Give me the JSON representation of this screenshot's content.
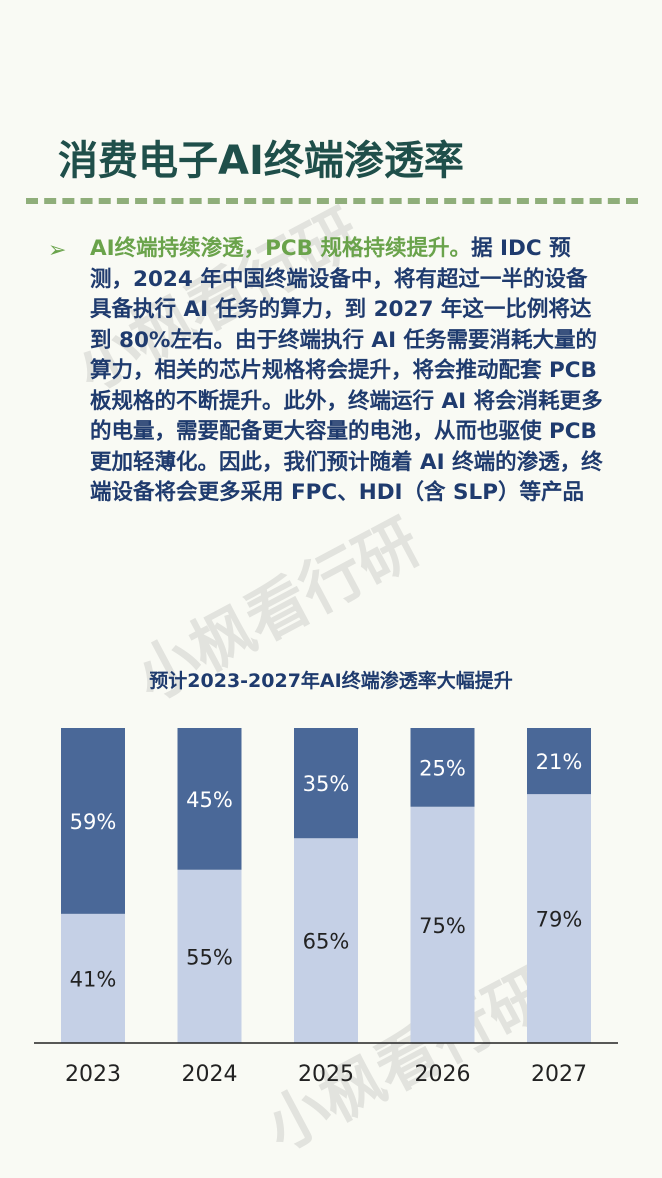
{
  "page": {
    "title": "消费电子AI终端渗透率",
    "bullet_highlight": "AI终端持续渗透，PCB 规格持续提升。",
    "bullet_text": "据 IDC 预测，2024 年中国终端设备中，将有超过一半的设备具备执行 AI 任务的算力，到 2027 年这一比例将达到 80%左右。由于终端执行 AI 任务需要消耗大量的算力，相关的芯片规格将会提升，将会推动配套 PCB 板规格的不断提升。此外，终端运行 AI 将会消耗更多的电量，需要配备更大容量的电池，从而也驱使 PCB 更加轻薄化。因此，我们预计随着 AI 终端的渗透，终端设备将会更多采用 FPC、HDI（含 SLP）等产品",
    "watermark": "小枫看行研"
  },
  "colors": {
    "title": "#1f4f4a",
    "accent_green": "#6aa34b",
    "body_text": "#1f3b6e",
    "series_dark": "#4a6898",
    "series_light": "#c5d0e6"
  },
  "chart_data": {
    "type": "bar",
    "stacked": true,
    "title": "预计2023-2027年AI终端渗透率大幅提升",
    "categories": [
      "2023",
      "2024",
      "2025",
      "2026",
      "2027"
    ],
    "series": [
      {
        "values": [
          41,
          55,
          65,
          75,
          79
        ],
        "labels": [
          "41%",
          "55%",
          "65%",
          "75%",
          "79%"
        ],
        "color": "#c5d0e6"
      },
      {
        "values": [
          59,
          45,
          35,
          25,
          21
        ],
        "labels": [
          "59%",
          "45%",
          "35%",
          "25%",
          "21%"
        ],
        "color": "#4a6898"
      }
    ],
    "ylim": [
      0,
      100
    ],
    "grid": false,
    "legend": "none"
  }
}
